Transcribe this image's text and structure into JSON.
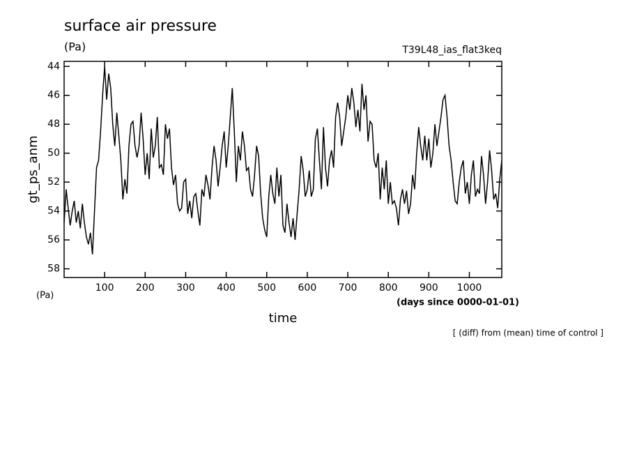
{
  "chart_data": {
    "type": "line",
    "title": "surface air pressure",
    "subtitle": "T39L48_ias_flat3keq",
    "units_top": "(Pa)",
    "units_bottom": "(Pa)",
    "y_label": "gt_ps_anm",
    "x_label": "time",
    "x_units": "(days since 0000-01-01)",
    "note": "[ (diff) from (mean) time of control ]",
    "xlim": [
      0,
      1080
    ],
    "ylim": [
      58.6,
      43.65
    ],
    "xticks": [
      100,
      200,
      300,
      400,
      500,
      600,
      700,
      800,
      900,
      1000
    ],
    "yticks": [
      44,
      46,
      48,
      50,
      52,
      54,
      56,
      58
    ],
    "x": [
      0,
      5,
      10,
      15,
      20,
      25,
      30,
      35,
      40,
      45,
      50,
      55,
      60,
      65,
      70,
      75,
      80,
      85,
      90,
      95,
      100,
      105,
      110,
      115,
      120,
      125,
      130,
      135,
      140,
      145,
      150,
      155,
      160,
      165,
      170,
      175,
      180,
      185,
      190,
      195,
      200,
      205,
      210,
      215,
      220,
      225,
      230,
      235,
      240,
      245,
      250,
      255,
      260,
      265,
      270,
      275,
      280,
      285,
      290,
      295,
      300,
      305,
      310,
      315,
      320,
      325,
      330,
      335,
      340,
      345,
      350,
      355,
      360,
      365,
      370,
      375,
      380,
      385,
      390,
      395,
      400,
      405,
      410,
      415,
      420,
      425,
      430,
      435,
      440,
      445,
      450,
      455,
      460,
      465,
      470,
      475,
      480,
      485,
      490,
      495,
      500,
      505,
      510,
      515,
      520,
      525,
      530,
      535,
      540,
      545,
      550,
      555,
      560,
      565,
      570,
      575,
      580,
      585,
      590,
      595,
      600,
      605,
      610,
      615,
      620,
      625,
      630,
      635,
      640,
      645,
      650,
      655,
      660,
      665,
      670,
      675,
      680,
      685,
      690,
      695,
      700,
      705,
      710,
      715,
      720,
      725,
      730,
      735,
      740,
      745,
      750,
      755,
      760,
      765,
      770,
      775,
      780,
      785,
      790,
      795,
      800,
      805,
      810,
      815,
      820,
      825,
      830,
      835,
      840,
      845,
      850,
      855,
      860,
      865,
      870,
      875,
      880,
      885,
      890,
      895,
      900,
      905,
      910,
      915,
      920,
      925,
      930,
      935,
      940,
      945,
      950,
      955,
      960,
      965,
      970,
      975,
      980,
      985,
      990,
      995,
      1000,
      1005,
      1010,
      1015,
      1020,
      1025,
      1030,
      1035,
      1040,
      1045,
      1050,
      1055,
      1060,
      1065,
      1070,
      1075,
      1080
    ],
    "series": [
      {
        "color": "#000000",
        "values": [
          54.8,
          52.5,
          53.8,
          55,
          54,
          53.3,
          54.8,
          54,
          55.2,
          53.5,
          54.8,
          55.8,
          56.3,
          55.5,
          57,
          54,
          51,
          50.5,
          48.5,
          46,
          44,
          46.3,
          44.5,
          45.5,
          48,
          49.5,
          47.2,
          48.8,
          50.5,
          53.2,
          51.8,
          52.8,
          49.5,
          48,
          47.8,
          49.5,
          50.3,
          49.5,
          47.2,
          49,
          51.5,
          50,
          51.8,
          48.3,
          50.3,
          49.5,
          47.5,
          51,
          50.8,
          51.5,
          48,
          49,
          48.3,
          51,
          52.2,
          51.5,
          53.5,
          54,
          53.8,
          52,
          51.8,
          54.2,
          53.3,
          54.5,
          53,
          52.8,
          54,
          55,
          52.5,
          53,
          51.5,
          52.2,
          53.2,
          51,
          49.5,
          50.5,
          52.3,
          51,
          49.5,
          48.5,
          51,
          49.5,
          47.5,
          45.5,
          48.5,
          52,
          49.5,
          50.5,
          48.5,
          49.5,
          51.2,
          51,
          52.5,
          53,
          51.5,
          49.5,
          50.2,
          52.8,
          54.5,
          55.3,
          55.8,
          53,
          51.5,
          52.8,
          53.5,
          51,
          53,
          51.5,
          55,
          55.5,
          53.5,
          54.8,
          55.8,
          54.5,
          56,
          54.2,
          52.5,
          50.2,
          51.2,
          53,
          52.5,
          51.2,
          53,
          52.5,
          49,
          48.3,
          50.5,
          52.5,
          48.2,
          51,
          52.3,
          50.5,
          49.8,
          51,
          47.5,
          46.5,
          47.5,
          49.5,
          48.5,
          47.5,
          46,
          47,
          45.5,
          46.5,
          48.2,
          47,
          48.5,
          45.2,
          47,
          46,
          49.2,
          47.8,
          48,
          50.5,
          51,
          50,
          53.2,
          51,
          52.5,
          50.5,
          53.5,
          52,
          53.5,
          53.3,
          53.8,
          55,
          53.2,
          52.5,
          53.5,
          52.6,
          54.2,
          53.5,
          51.5,
          52.5,
          50,
          48.2,
          49.5,
          50.5,
          48.8,
          50.5,
          49,
          51,
          50,
          48,
          49.5,
          48.5,
          47.5,
          46.3,
          46,
          47.5,
          49.5,
          50.5,
          52,
          53.3,
          53.5,
          52,
          51,
          50.5,
          52.8,
          52,
          53.5,
          51.5,
          50.5,
          53,
          52.5,
          52.8,
          50.2,
          51.5,
          53.5,
          52,
          49.8,
          51.2,
          53.2,
          52.8,
          53.8,
          51.8,
          50.5
        ]
      }
    ]
  }
}
